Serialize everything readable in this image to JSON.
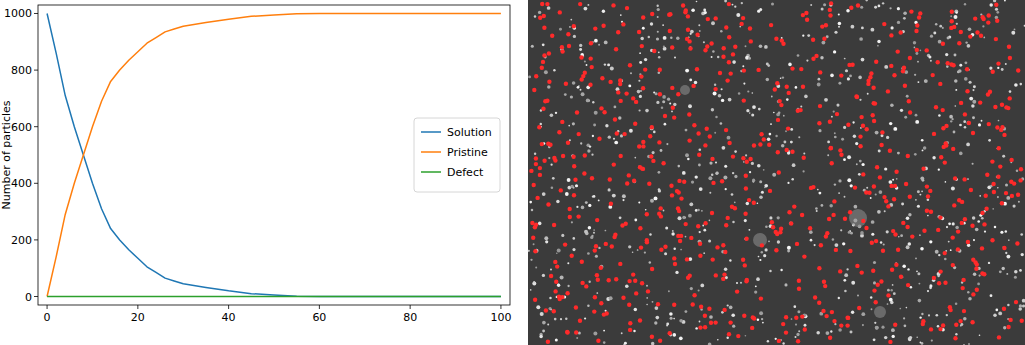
{
  "chart_data": {
    "type": "line",
    "y_label": "Number of particles",
    "x": [
      0,
      2,
      4,
      6,
      8,
      10,
      12,
      14,
      16,
      18,
      20,
      22,
      24,
      26,
      28,
      30,
      35,
      40,
      45,
      50,
      55,
      60,
      70,
      80,
      90,
      100
    ],
    "series": [
      {
        "name": "Solution",
        "color": "#1f77b4",
        "values": [
          1000,
          860,
          710,
          600,
          500,
          400,
          310,
          240,
          200,
          165,
          135,
          105,
          85,
          65,
          55,
          45,
          32,
          20,
          10,
          5,
          1,
          0,
          0,
          0,
          0,
          0
        ]
      },
      {
        "name": "Pristine",
        "color": "#ff7f0e",
        "values": [
          0,
          140,
          290,
          400,
          500,
          600,
          690,
          760,
          800,
          835,
          865,
          895,
          915,
          935,
          945,
          955,
          968,
          980,
          990,
          995,
          999,
          1000,
          1000,
          1000,
          1000,
          1000
        ]
      },
      {
        "name": "Defect",
        "color": "#2ca02c",
        "values": [
          0,
          0,
          0,
          0,
          0,
          0,
          0,
          0,
          0,
          0,
          0,
          0,
          0,
          0,
          0,
          0,
          0,
          0,
          0,
          0,
          0,
          0,
          0,
          0,
          0,
          0
        ]
      }
    ],
    "xlim": [
      -2,
      102
    ],
    "ylim": [
      -30,
      1030
    ],
    "xticks": [
      0,
      20,
      40,
      60,
      80,
      100
    ],
    "yticks": [
      0,
      200,
      400,
      600,
      800,
      1000
    ],
    "legend": "center right",
    "grid": false
  }
}
